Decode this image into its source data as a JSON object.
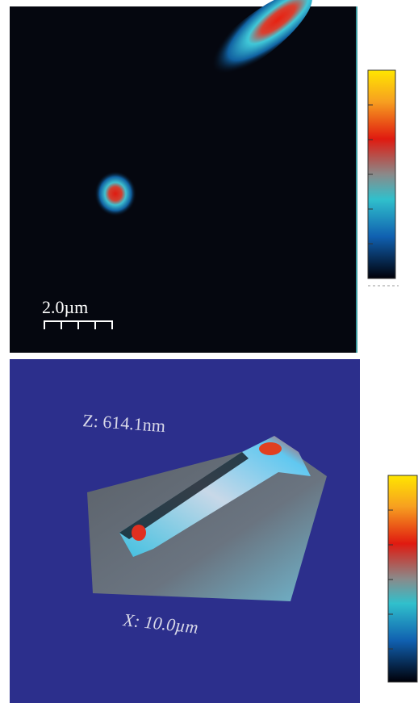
{
  "panels": [
    {
      "scale_bar": "2.0µm"
    },
    {
      "z_label": "Z: 614.1nm",
      "x_label": "X: 10.0µm"
    }
  ]
}
